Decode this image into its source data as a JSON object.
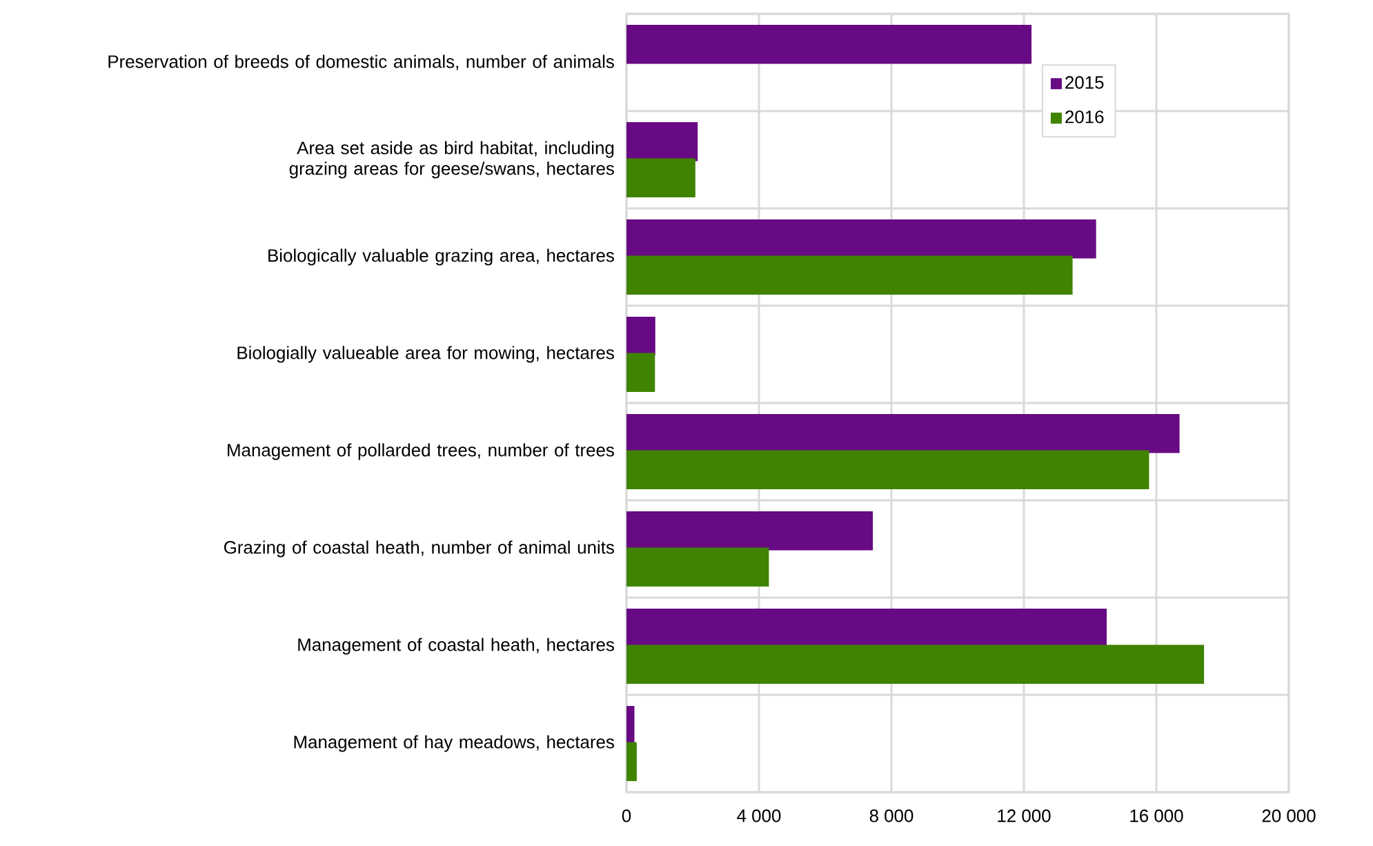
{
  "chart_data": {
    "type": "bar",
    "orientation": "horizontal",
    "categories": [
      "Preservation of breeds of domestic animals, number of animals",
      "Area set aside as bird habitat, including grazing areas for geese/swans, hectares",
      "Biologically valuable grazing area, hectares",
      "Biologially valueable area for mowing, hectares",
      "Management of pollarded trees, number of trees",
      "Grazing of coastal heath, number of animal units",
      "Management of coastal heath, hectares",
      "Management of hay meadows, hectares"
    ],
    "series": [
      {
        "name": "2015",
        "color": "#670a84",
        "values": [
          12230,
          2150,
          14180,
          870,
          16700,
          7440,
          14500,
          240
        ]
      },
      {
        "name": "2016",
        "color": "#3f8300",
        "values": [
          null,
          2080,
          13470,
          860,
          15780,
          4300,
          17440,
          310
        ]
      }
    ],
    "xlim": [
      0,
      20000
    ],
    "xticks": [
      0,
      {
        "value": 4000,
        "label": "4 000"
      },
      {
        "value": 8000,
        "label": "8 000"
      },
      {
        "value": 12000,
        "label": "12 000"
      },
      {
        "value": 16000,
        "label": "16 000"
      },
      {
        "value": 20000,
        "label": "20 000"
      }
    ],
    "grid": true,
    "legend": "top right"
  }
}
